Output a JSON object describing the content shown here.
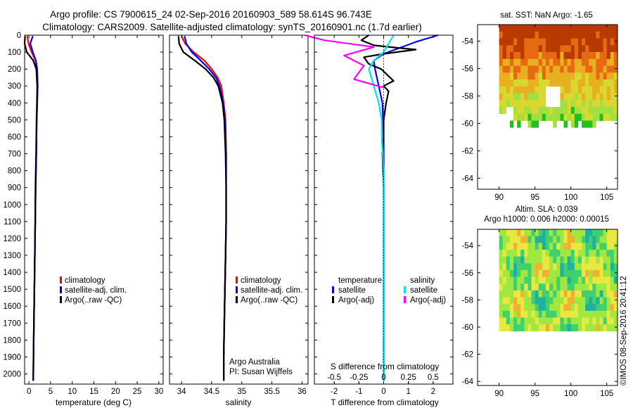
{
  "chart_data": [
    {
      "type": "line",
      "title": "Argo profile: CS 7900615_24 02-Sep-2016 20160903_589 58.614S 96.743E",
      "subtitle": "Climatology: CARS2009. Satellite-adjusted climatology: synTS_20160901.nc (1.7d earlier)",
      "xlabel": "temperature (deg C)",
      "ylabel": "",
      "xlim": [
        -1,
        31
      ],
      "ylim": [
        2060,
        0
      ],
      "x_ticks": [
        "0",
        "5",
        "10",
        "15",
        "20",
        "25",
        "30"
      ],
      "y_ticks": [
        "0",
        "100",
        "200",
        "300",
        "400",
        "500",
        "600",
        "700",
        "800",
        "900",
        "1000",
        "1100",
        "1200",
        "1300",
        "1400",
        "1500",
        "1600",
        "1700",
        "1800",
        "1900",
        "2000"
      ],
      "series": [
        {
          "name": "climatology",
          "color": "#ff0000",
          "x": [
            -0.4,
            -0.1,
            0.6,
            1.5,
            1.9,
            2.0,
            1.9,
            1.8,
            1.7,
            1.55,
            1.45,
            1.35,
            1.25,
            1.15,
            1.05,
            1.0
          ],
          "y": [
            5,
            50,
            100,
            150,
            200,
            300,
            400,
            500,
            700,
            900,
            1100,
            1300,
            1500,
            1700,
            1900,
            2040
          ]
        },
        {
          "name": "satellite-adj. clim.",
          "color": "#0000ff",
          "x": [
            0.9,
            0.3,
            0.9,
            1.6,
            1.9,
            2.0,
            1.9,
            1.8,
            1.7,
            1.55,
            1.45,
            1.35,
            1.25,
            1.15,
            1.05,
            1.0
          ],
          "y": [
            5,
            50,
            100,
            150,
            200,
            300,
            400,
            500,
            700,
            900,
            1100,
            1300,
            1500,
            1700,
            1900,
            2040
          ]
        },
        {
          "name": "Argo(..raw -QC)",
          "color": "#000000",
          "x": [
            -0.9,
            -1.0,
            -0.5,
            1.0,
            1.7,
            1.9,
            1.85,
            1.75,
            1.65,
            1.5,
            1.45,
            1.35,
            1.25,
            1.15,
            1.05,
            1.0
          ],
          "y": [
            5,
            50,
            100,
            150,
            200,
            300,
            400,
            500,
            700,
            900,
            1100,
            1300,
            1500,
            1700,
            1900,
            2040
          ]
        }
      ],
      "legend": "center-bottom"
    },
    {
      "type": "line",
      "xlabel": "salinity",
      "xlim": [
        33.8,
        36.1
      ],
      "ylim": [
        2060,
        0
      ],
      "x_ticks": [
        "34",
        "34.5",
        "35",
        "35.5",
        "36"
      ],
      "series": [
        {
          "name": "climatology",
          "color": "#ff0000",
          "x": [
            34.0,
            34.06,
            34.2,
            34.38,
            34.5,
            34.6,
            34.66,
            34.7,
            34.73,
            34.74,
            34.74,
            34.74,
            34.73,
            34.72,
            34.71,
            34.7,
            34.7,
            34.7
          ],
          "y": [
            5,
            50,
            100,
            150,
            200,
            250,
            300,
            400,
            500,
            700,
            900,
            1100,
            1300,
            1500,
            1700,
            1900,
            2000,
            2040
          ]
        },
        {
          "name": "satellite-adj. clim.",
          "color": "#0000ff",
          "x": [
            34.05,
            34.08,
            34.17,
            34.32,
            34.46,
            34.57,
            34.63,
            34.69,
            34.72,
            34.74,
            34.74,
            34.74,
            34.73,
            34.72,
            34.71,
            34.7,
            34.7,
            34.7
          ],
          "y": [
            5,
            50,
            100,
            150,
            200,
            250,
            300,
            400,
            500,
            700,
            900,
            1100,
            1300,
            1500,
            1700,
            1900,
            2000,
            2040
          ]
        },
        {
          "name": "Argo(..raw -QC)",
          "color": "#000000",
          "x": [
            33.95,
            33.96,
            34.03,
            34.22,
            34.4,
            34.53,
            34.61,
            34.68,
            34.71,
            34.73,
            34.74,
            34.74,
            34.73,
            34.72,
            34.71,
            34.7,
            34.7,
            34.7
          ],
          "y": [
            5,
            50,
            100,
            150,
            200,
            250,
            300,
            400,
            500,
            700,
            900,
            1100,
            1300,
            1500,
            1700,
            1900,
            2000,
            2040
          ]
        }
      ],
      "legend": "center-bottom",
      "annotation": [
        "Argo Australia",
        "PI: Susan Wijffels"
      ]
    },
    {
      "type": "line",
      "xlabel": "T difference from climatology",
      "xlabel_top": "S difference from climatology",
      "xlim": [
        -2.8,
        2.8
      ],
      "ylim": [
        2060,
        0
      ],
      "x_ticks": [
        "-2",
        "-1",
        "0",
        "1",
        "2"
      ],
      "x_ticks_top": [
        "-0.5",
        "-0.25",
        "0",
        "0.25",
        "0.5"
      ],
      "legend_titles": [
        "temperature",
        "salinity"
      ],
      "series": [
        {
          "name": "satellite",
          "group": "temperature",
          "color": "#0000ff",
          "x": [
            2.2,
            1.3,
            0.0,
            -0.4,
            -0.35,
            -0.2,
            -0.05,
            0.0,
            0.0,
            0.0,
            0.0,
            0.0,
            0.0,
            0.0,
            0.0
          ],
          "y": [
            0,
            40,
            110,
            150,
            200,
            300,
            400,
            600,
            800,
            1000,
            1200,
            1400,
            1600,
            1800,
            2040
          ]
        },
        {
          "name": "Argo(-adj)",
          "group": "temperature",
          "color": "#000000",
          "x": [
            -0.6,
            -0.9,
            -0.4,
            0.6,
            1.3,
            0.0,
            -0.8,
            -0.6,
            -0.1,
            0.4,
            0.0,
            0.2,
            0.1,
            0.0,
            0.0,
            -0.05,
            0.0,
            0.0,
            0.0
          ],
          "y": [
            0,
            30,
            60,
            75,
            85,
            110,
            130,
            170,
            200,
            270,
            300,
            330,
            400,
            500,
            600,
            700,
            900,
            1300,
            2040
          ]
        },
        {
          "name": "satellite",
          "group": "salinity",
          "color": "#00e5e5",
          "x": [
            0.1,
            0.05,
            0.0,
            -0.1,
            -0.15,
            -0.1,
            -0.05,
            -0.02,
            -0.02,
            0.0,
            0.0,
            0.0,
            0.0,
            0.0,
            0.0
          ],
          "y": [
            0,
            50,
            100,
            150,
            200,
            300,
            400,
            500,
            600,
            800,
            1000,
            1200,
            1500,
            1800,
            2040
          ]
        },
        {
          "name": "Argo(-adj)",
          "group": "salinity",
          "color": "#ff00ff",
          "x": [
            -0.8,
            -0.6,
            -0.1,
            -0.4,
            -0.2,
            -0.3,
            0.0
          ],
          "y": [
            0,
            30,
            70,
            120,
            180,
            260,
            310
          ]
        }
      ],
      "legend": "center-bottom"
    },
    {
      "type": "heatmap",
      "title": "sat. SST: NaN Argo: -1.65",
      "xlim": [
        87,
        106.5
      ],
      "ylim": [
        -64.8,
        -52.8
      ],
      "x_ticks": [
        "90",
        "95",
        "100",
        "105"
      ],
      "y_ticks": [
        "-54",
        "-56",
        "-58",
        "-60",
        "-62",
        "-64"
      ],
      "data_extent": {
        "lon": [
          90,
          106.5
        ],
        "lat": [
          -60.1,
          -52.8
        ]
      },
      "colors": [
        "#b83a00",
        "#e86a10",
        "#e8b020",
        "#d8d830",
        "#a0e040",
        "#20c020"
      ]
    },
    {
      "type": "heatmap",
      "title": "Altim. SLA: 0.039",
      "subtitle": "Argo h1000: 0.006 h2000: 0.00015",
      "xlim": [
        87,
        106.5
      ],
      "ylim": [
        -64.3,
        -52.8
      ],
      "x_ticks": [
        "90",
        "95",
        "100",
        "105"
      ],
      "y_ticks": [
        "-54",
        "-56",
        "-58",
        "-60",
        "-62",
        "-64"
      ],
      "data_extent": {
        "lon": [
          90,
          106.5
        ],
        "lat": [
          -60.1,
          -52.8
        ]
      },
      "colors": [
        "#20b0a0",
        "#40d070",
        "#a0e840",
        "#e8e840",
        "#f0b030"
      ]
    }
  ],
  "footer": "©IMOS 08-Sep-2016 20:41:12"
}
